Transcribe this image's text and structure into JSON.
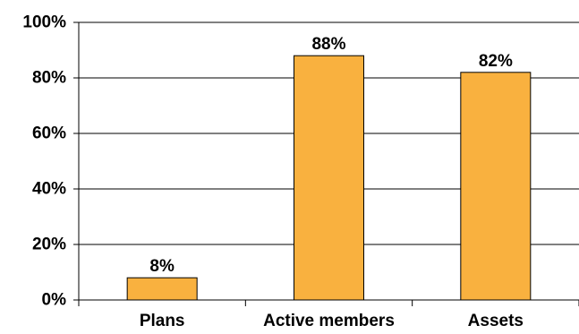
{
  "chart_data": {
    "type": "bar",
    "categories": [
      "Plans",
      "Active members",
      "Assets"
    ],
    "values": [
      8,
      88,
      82
    ],
    "data_labels": [
      "8%",
      "88%",
      "82%"
    ],
    "ylim": [
      0,
      100
    ],
    "y_ticks": [
      0,
      20,
      40,
      60,
      80,
      100
    ],
    "y_tick_labels": [
      "0%",
      "20%",
      "40%",
      "60%",
      "80%",
      "100%"
    ],
    "title": "",
    "xlabel": "",
    "ylabel": "",
    "grid": true,
    "bar_color": "#F9B13F",
    "bar_edge_color": "#000000"
  }
}
